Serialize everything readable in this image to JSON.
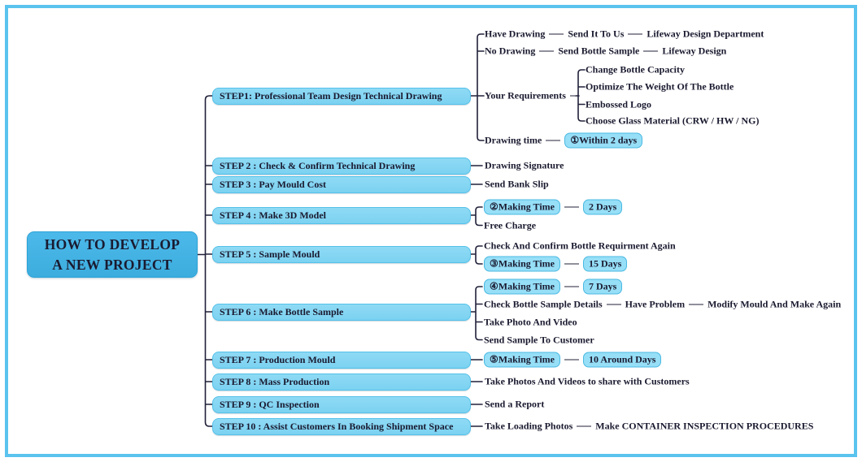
{
  "title": {
    "line1": "HOW TO DEVELOP",
    "line2": "A NEW PROJECT"
  },
  "colors": {
    "frame_border": "#5ac3ee",
    "node_fill": "#8fdaf5",
    "node_border": "#54c1e9",
    "root_fill": "#4cb9ea",
    "badge_fill": "#96dff7",
    "badge_border": "#49b9e2",
    "text_color": "#1a1a30",
    "line_color": "#20203a"
  },
  "steps": [
    {
      "label": "STEP1: Professional Team Design Technical Drawing",
      "rows": [
        {
          "segments": [
            {
              "text": "Have Drawing"
            },
            {
              "dash": true
            },
            {
              "text": "Send It To Us"
            },
            {
              "dash": true
            },
            {
              "text": "Lifeway Design Department"
            }
          ]
        },
        {
          "segments": [
            {
              "text": "No Drawing"
            },
            {
              "dash": true
            },
            {
              "text": "Send Bottle Sample"
            },
            {
              "dash": true
            },
            {
              "text": "Lifeway Design"
            }
          ]
        },
        {
          "segments": [
            {
              "text": "Your Requirements"
            },
            {
              "dash": "flex"
            }
          ]
        },
        {
          "segments": [
            {
              "text": "Change Bottle Capacity"
            }
          ]
        },
        {
          "segments": [
            {
              "text": "Optimize The Weight Of The Bottle"
            }
          ]
        },
        {
          "segments": [
            {
              "text": "Embossed Logo"
            }
          ]
        },
        {
          "segments": [
            {
              "text": "Choose Glass Material (CRW / HW / NG)"
            }
          ]
        },
        {
          "segments": [
            {
              "text": "Drawing time"
            },
            {
              "dash": true
            },
            {
              "badge": "①Within 2 days"
            }
          ]
        }
      ]
    },
    {
      "label": "STEP 2 : Check & Confirm Technical Drawing",
      "rows": [
        {
          "segments": [
            {
              "text": "Drawing Signature"
            }
          ]
        }
      ]
    },
    {
      "label": "STEP 3 : Pay Mould Cost",
      "rows": [
        {
          "segments": [
            {
              "text": "Send Bank Slip"
            }
          ]
        }
      ]
    },
    {
      "label": "STEP 4 : Make 3D Model",
      "rows": [
        {
          "segments": [
            {
              "badge": "②Making Time"
            },
            {
              "dash": true
            },
            {
              "badge": "2 Days"
            }
          ]
        },
        {
          "segments": [
            {
              "text": "Free Charge"
            }
          ]
        }
      ]
    },
    {
      "label": "STEP 5 : Sample Mould",
      "rows": [
        {
          "segments": [
            {
              "text": "Check And Confirm Bottle Requirment Again"
            }
          ]
        },
        {
          "segments": [
            {
              "badge": "③Making Time"
            },
            {
              "dash": true
            },
            {
              "badge": "15 Days"
            }
          ]
        }
      ]
    },
    {
      "label": "STEP 6 : Make Bottle Sample",
      "rows": [
        {
          "segments": [
            {
              "badge": "④Making Time"
            },
            {
              "dash": true
            },
            {
              "badge": "7 Days"
            }
          ]
        },
        {
          "segments": [
            {
              "text": "Check Bottle Sample Details"
            },
            {
              "dash": true
            },
            {
              "text": "Have Problem"
            },
            {
              "dash": true
            },
            {
              "text": "Modify Mould And Make Again"
            }
          ]
        },
        {
          "segments": [
            {
              "text": "Take Photo And Video"
            }
          ]
        },
        {
          "segments": [
            {
              "text": "Send Sample To Customer"
            }
          ]
        }
      ]
    },
    {
      "label": "STEP 7 : Production Mould",
      "rows": [
        {
          "segments": [
            {
              "badge": "⑤Making Time"
            },
            {
              "dash": true
            },
            {
              "badge": "10 Around Days"
            }
          ]
        }
      ]
    },
    {
      "label": "STEP 8 : Mass Production",
      "rows": [
        {
          "segments": [
            {
              "text": "Take Photos And Videos to share with Customers"
            }
          ]
        }
      ]
    },
    {
      "label": "STEP 9 : QC Inspection",
      "rows": [
        {
          "segments": [
            {
              "text": "Send a Report"
            }
          ]
        }
      ]
    },
    {
      "label": "STEP 10 : Assist Customers In Booking Shipment Space",
      "rows": [
        {
          "segments": [
            {
              "text": "Take Loading Photos"
            },
            {
              "dash": true
            },
            {
              "text": "Make CONTAINER INSPECTION PROCEDURES"
            }
          ]
        }
      ]
    }
  ]
}
